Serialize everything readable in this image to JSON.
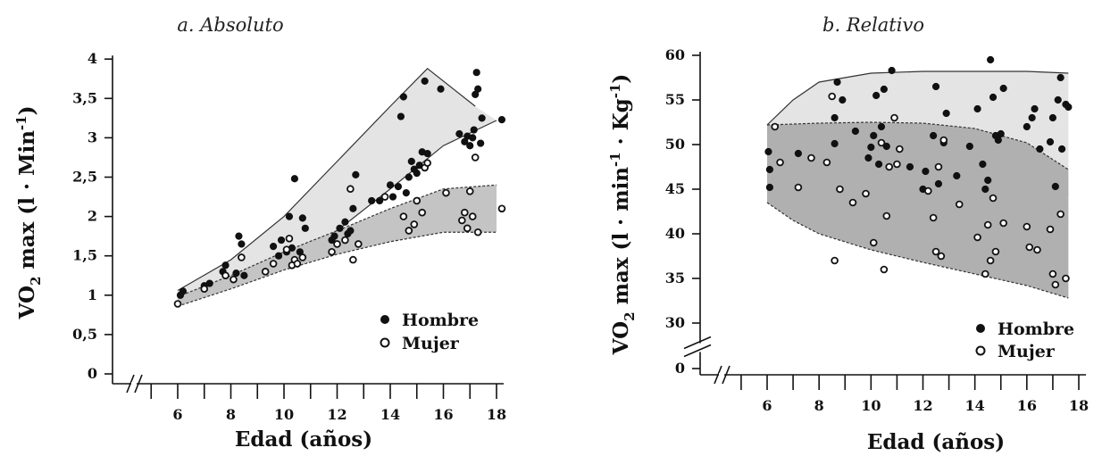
{
  "chart_data": [
    {
      "id": "absoluto",
      "type": "scatter",
      "title": "a. Absoluto",
      "xlabel": "Edad (años)",
      "ylabel_main": "VO",
      "ylabel_sub": "2",
      "ylabel_rest": " max (l · Min",
      "ylabel_sup": "-1",
      "ylabel_end": ")",
      "xlim": [
        4,
        18.5
      ],
      "ylim": [
        0,
        4
      ],
      "x_ticks": [
        6,
        8,
        10,
        12,
        14,
        16,
        18
      ],
      "x_tick_labels": [
        "6",
        "8",
        "10",
        "12",
        "14",
        "16",
        "18"
      ],
      "y_ticks": [
        0,
        0.5,
        1,
        1.5,
        2,
        2.5,
        3,
        3.5,
        4
      ],
      "y_tick_labels": [
        "0",
        "0,5",
        "1",
        "1,5",
        "2",
        "2,5",
        "3",
        "3,5",
        "4"
      ],
      "axis_break": true,
      "legend": {
        "position": "bottom-right",
        "items": [
          "Hombre",
          "Mujer"
        ]
      },
      "series": [
        {
          "name": "Hombre",
          "marker": "filled",
          "points": [
            [
              6.1,
              1.0
            ],
            [
              6.2,
              1.05
            ],
            [
              7.0,
              1.12
            ],
            [
              7.2,
              1.15
            ],
            [
              7.7,
              1.3
            ],
            [
              7.8,
              1.38
            ],
            [
              8.2,
              1.28
            ],
            [
              8.3,
              1.75
            ],
            [
              8.4,
              1.65
            ],
            [
              8.5,
              1.25
            ],
            [
              9.6,
              1.62
            ],
            [
              9.8,
              1.5
            ],
            [
              9.9,
              1.7
            ],
            [
              10.1,
              1.55
            ],
            [
              10.2,
              2.0
            ],
            [
              10.3,
              1.6
            ],
            [
              10.4,
              2.48
            ],
            [
              10.6,
              1.55
            ],
            [
              10.7,
              1.98
            ],
            [
              10.8,
              1.85
            ],
            [
              11.8,
              1.7
            ],
            [
              11.9,
              1.75
            ],
            [
              12.1,
              1.85
            ],
            [
              12.3,
              1.93
            ],
            [
              12.4,
              1.78
            ],
            [
              12.5,
              1.82
            ],
            [
              12.6,
              2.1
            ],
            [
              12.7,
              2.53
            ],
            [
              13.3,
              2.2
            ],
            [
              13.6,
              2.2
            ],
            [
              14.0,
              2.4
            ],
            [
              14.1,
              2.25
            ],
            [
              14.3,
              2.38
            ],
            [
              14.4,
              3.27
            ],
            [
              14.5,
              3.52
            ],
            [
              14.6,
              2.3
            ],
            [
              14.7,
              2.5
            ],
            [
              14.8,
              2.7
            ],
            [
              14.9,
              2.6
            ],
            [
              15.0,
              2.55
            ],
            [
              15.1,
              2.65
            ],
            [
              15.2,
              2.82
            ],
            [
              15.3,
              3.72
            ],
            [
              15.4,
              2.8
            ],
            [
              15.9,
              3.62
            ],
            [
              16.6,
              3.05
            ],
            [
              16.8,
              2.95
            ],
            [
              16.9,
              3.02
            ],
            [
              17.0,
              2.9
            ],
            [
              17.1,
              3.0
            ],
            [
              17.15,
              3.1
            ],
            [
              17.2,
              3.55
            ],
            [
              17.25,
              3.83
            ],
            [
              17.3,
              3.62
            ],
            [
              17.4,
              2.93
            ],
            [
              17.45,
              3.25
            ],
            [
              18.2,
              3.23
            ]
          ]
        },
        {
          "name": "Mujer",
          "marker": "open",
          "points": [
            [
              6.0,
              0.89
            ],
            [
              7.0,
              1.08
            ],
            [
              7.8,
              1.25
            ],
            [
              8.1,
              1.2
            ],
            [
              8.4,
              1.48
            ],
            [
              9.3,
              1.3
            ],
            [
              9.6,
              1.4
            ],
            [
              10.1,
              1.58
            ],
            [
              10.2,
              1.72
            ],
            [
              10.3,
              1.38
            ],
            [
              10.4,
              1.45
            ],
            [
              10.5,
              1.4
            ],
            [
              10.7,
              1.48
            ],
            [
              11.8,
              1.55
            ],
            [
              12.0,
              1.65
            ],
            [
              12.3,
              1.7
            ],
            [
              12.5,
              2.35
            ],
            [
              12.6,
              1.45
            ],
            [
              12.8,
              1.65
            ],
            [
              13.8,
              2.25
            ],
            [
              14.5,
              2.0
            ],
            [
              14.7,
              1.82
            ],
            [
              14.9,
              1.9
            ],
            [
              15.0,
              2.2
            ],
            [
              15.2,
              2.05
            ],
            [
              15.3,
              2.62
            ],
            [
              15.4,
              2.68
            ],
            [
              16.1,
              2.3
            ],
            [
              16.7,
              1.95
            ],
            [
              16.8,
              2.05
            ],
            [
              16.9,
              1.85
            ],
            [
              17.0,
              2.32
            ],
            [
              17.1,
              2.0
            ],
            [
              17.2,
              2.75
            ],
            [
              17.3,
              1.8
            ],
            [
              18.2,
              2.1
            ]
          ]
        }
      ],
      "bands": [
        {
          "name": "Hombre",
          "fill": "#e4e4e4",
          "stroke": "#333333",
          "dashed": false,
          "upper": [
            [
              6,
              1.06
            ],
            [
              8,
              1.45
            ],
            [
              10,
              2.0
            ],
            [
              12,
              2.7
            ],
            [
              14,
              3.4
            ],
            [
              15.4,
              3.88
            ],
            [
              17.2,
              3.4
            ]
          ],
          "lower": [
            [
              6,
              0.95
            ],
            [
              8,
              1.2
            ],
            [
              10,
              1.45
            ],
            [
              12,
              1.82
            ],
            [
              14,
              2.35
            ],
            [
              16,
              2.9
            ],
            [
              18,
              3.22
            ]
          ]
        },
        {
          "name": "Mujer",
          "fill": "#c4c4c4",
          "stroke": "#333333",
          "dashed": true,
          "upper": [
            [
              6,
              0.98
            ],
            [
              8,
              1.25
            ],
            [
              10,
              1.55
            ],
            [
              12,
              1.82
            ],
            [
              14,
              2.1
            ],
            [
              16,
              2.35
            ],
            [
              18,
              2.4
            ]
          ],
          "lower": [
            [
              6,
              0.86
            ],
            [
              8,
              1.08
            ],
            [
              10,
              1.32
            ],
            [
              12,
              1.52
            ],
            [
              14,
              1.68
            ],
            [
              16,
              1.8
            ],
            [
              18,
              1.8
            ]
          ]
        }
      ],
      "colors": {
        "filled_marker": "#111111",
        "open_marker_fill": "#ffffff"
      }
    },
    {
      "id": "relativo",
      "type": "scatter",
      "title": "b. Relativo",
      "xlabel": "Edad (años)",
      "ylabel_main": "VO",
      "ylabel_sub": "2",
      "ylabel_rest": " max (l · min",
      "ylabel_sup": "-1",
      "ylabel_mid": " · Kg",
      "ylabel_sup2": "-1",
      "ylabel_end": ")",
      "xlim": [
        4,
        18.5
      ],
      "ylim": [
        0,
        60
      ],
      "axis_break_y": [
        0,
        30
      ],
      "x_ticks": [
        6,
        8,
        10,
        12,
        14,
        16,
        18
      ],
      "x_tick_labels": [
        "6",
        "8",
        "10",
        "12",
        "14",
        "16",
        "18"
      ],
      "y_ticks": [
        0,
        30,
        35,
        40,
        45,
        50,
        55,
        60
      ],
      "y_tick_labels": [
        "0",
        "30",
        "35",
        "40",
        "45",
        "50",
        "55",
        "60"
      ],
      "axis_break": true,
      "legend": {
        "position": "bottom-right",
        "items": [
          "Hombre",
          "Mujer"
        ]
      },
      "series": [
        {
          "name": "Hombre",
          "marker": "filled",
          "points": [
            [
              6.05,
              49.2
            ],
            [
              6.1,
              47.2
            ],
            [
              6.1,
              45.2
            ],
            [
              7.2,
              49.0
            ],
            [
              8.6,
              50.1
            ],
            [
              8.7,
              57.0
            ],
            [
              8.6,
              53.0
            ],
            [
              8.9,
              55.0
            ],
            [
              9.4,
              51.5
            ],
            [
              9.9,
              48.5
            ],
            [
              10.0,
              49.7
            ],
            [
              10.1,
              51.0
            ],
            [
              10.2,
              55.5
            ],
            [
              10.3,
              47.8
            ],
            [
              10.4,
              52.0
            ],
            [
              10.5,
              56.2
            ],
            [
              10.6,
              49.8
            ],
            [
              10.8,
              58.3
            ],
            [
              11.5,
              47.5
            ],
            [
              12.0,
              45.0
            ],
            [
              12.1,
              47.0
            ],
            [
              12.4,
              51.0
            ],
            [
              12.5,
              56.5
            ],
            [
              12.6,
              45.6
            ],
            [
              12.8,
              50.2
            ],
            [
              12.9,
              53.5
            ],
            [
              13.3,
              46.5
            ],
            [
              13.8,
              49.8
            ],
            [
              14.1,
              54.0
            ],
            [
              14.3,
              47.8
            ],
            [
              14.4,
              45.0
            ],
            [
              14.5,
              46.0
            ],
            [
              14.6,
              59.5
            ],
            [
              14.7,
              55.3
            ],
            [
              14.8,
              51.0
            ],
            [
              14.9,
              50.5
            ],
            [
              15.0,
              51.2
            ],
            [
              15.1,
              56.3
            ],
            [
              16.0,
              52.0
            ],
            [
              16.2,
              53.0
            ],
            [
              16.3,
              54.0
            ],
            [
              16.5,
              49.5
            ],
            [
              16.9,
              50.3
            ],
            [
              17.0,
              53.0
            ],
            [
              17.1,
              45.3
            ],
            [
              17.2,
              55.0
            ],
            [
              17.3,
              57.5
            ],
            [
              17.35,
              49.5
            ],
            [
              17.5,
              54.5
            ],
            [
              17.6,
              54.2
            ]
          ]
        },
        {
          "name": "Mujer",
          "marker": "open",
          "points": [
            [
              6.3,
              52.0
            ],
            [
              6.5,
              48.0
            ],
            [
              7.2,
              45.2
            ],
            [
              7.7,
              48.5
            ],
            [
              8.3,
              48.0
            ],
            [
              8.5,
              55.4
            ],
            [
              8.6,
              37.0
            ],
            [
              8.8,
              45.0
            ],
            [
              9.3,
              43.5
            ],
            [
              9.8,
              44.5
            ],
            [
              10.1,
              39.0
            ],
            [
              10.4,
              50.2
            ],
            [
              10.5,
              36.0
            ],
            [
              10.6,
              42.0
            ],
            [
              10.7,
              47.5
            ],
            [
              10.9,
              53.0
            ],
            [
              11.0,
              47.8
            ],
            [
              11.1,
              49.5
            ],
            [
              12.2,
              44.8
            ],
            [
              12.4,
              41.8
            ],
            [
              12.5,
              38.0
            ],
            [
              12.6,
              47.5
            ],
            [
              12.7,
              37.5
            ],
            [
              12.8,
              50.5
            ],
            [
              13.4,
              43.3
            ],
            [
              14.1,
              39.6
            ],
            [
              14.4,
              35.5
            ],
            [
              14.5,
              41.0
            ],
            [
              14.6,
              37.0
            ],
            [
              14.7,
              44.0
            ],
            [
              14.8,
              38.0
            ],
            [
              15.1,
              41.2
            ],
            [
              16.0,
              40.8
            ],
            [
              16.1,
              38.5
            ],
            [
              16.4,
              38.2
            ],
            [
              16.9,
              40.5
            ],
            [
              17.0,
              35.5
            ],
            [
              17.1,
              34.3
            ],
            [
              17.3,
              42.2
            ],
            [
              17.5,
              35.0
            ]
          ]
        }
      ],
      "bands": [
        {
          "name": "Hombre",
          "fill": "#e4e4e4",
          "stroke": "#333333",
          "dashed": false,
          "upper": [
            [
              6,
              52.2
            ],
            [
              7,
              55.0
            ],
            [
              8,
              57.0
            ],
            [
              10,
              58.0
            ],
            [
              12,
              58.2
            ],
            [
              14,
              58.2
            ],
            [
              16,
              58.2
            ],
            [
              17.6,
              58.0
            ]
          ],
          "lower": [
            [
              6,
              44.6
            ],
            [
              8,
              44.6
            ],
            [
              10,
              44.5
            ],
            [
              12,
              44.5
            ],
            [
              14,
              44.4
            ],
            [
              16,
              44.4
            ],
            [
              17.6,
              44.4
            ]
          ]
        },
        {
          "name": "Mujer",
          "fill": "#b0b0b0",
          "stroke": "#333333",
          "dashed": true,
          "upper": [
            [
              6,
              52.2
            ],
            [
              8,
              52.4
            ],
            [
              10,
              52.5
            ],
            [
              12,
              52.4
            ],
            [
              14,
              51.8
            ],
            [
              16,
              50.2
            ],
            [
              17.6,
              47.2
            ]
          ],
          "lower": [
            [
              6,
              43.5
            ],
            [
              7,
              41.5
            ],
            [
              8,
              40.0
            ],
            [
              10,
              38.2
            ],
            [
              12,
              36.8
            ],
            [
              14,
              35.5
            ],
            [
              16,
              34.2
            ],
            [
              17.6,
              32.8
            ]
          ]
        }
      ],
      "colors": {
        "filled_marker": "#111111",
        "open_marker_fill": "#ffffff"
      }
    }
  ]
}
